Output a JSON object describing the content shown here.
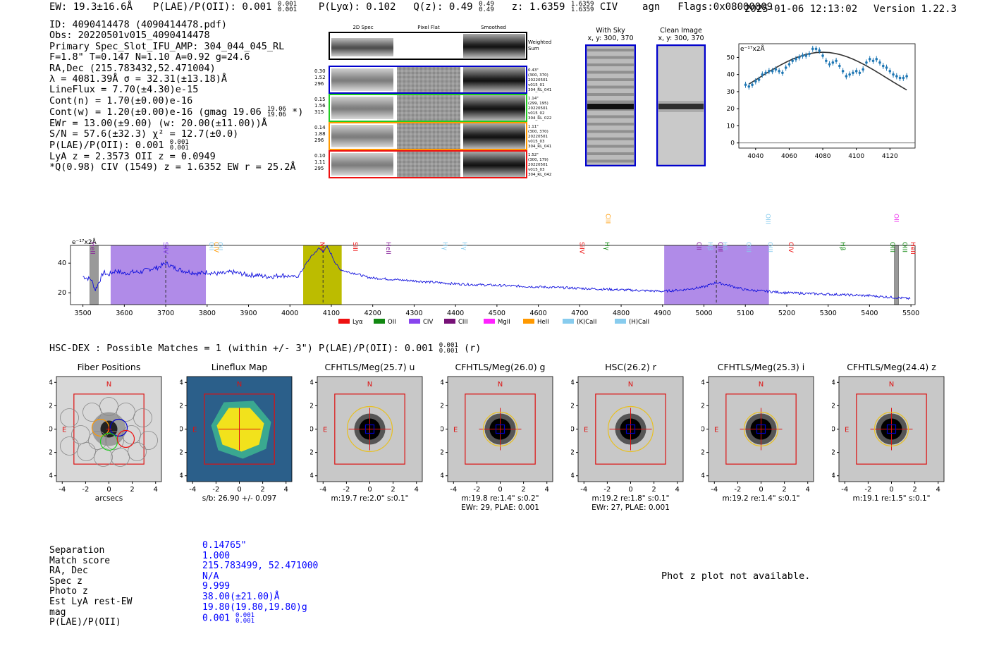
{
  "header": {
    "ew": "EW: 19.3±16.6Å",
    "plae_label": "P(LAE)/P(OII): 0.001",
    "plae_hi": "0.001",
    "plae_lo": "0.001",
    "plya": "P(Lyα): 0.102",
    "qz_label": "Q(z): 0.49",
    "qz_hi": "0.49",
    "qz_lo": "0.49",
    "z_label": "z: 1.6359",
    "z_hi": "1.6359",
    "z_lo": "1.6359",
    "line": "CIV",
    "cls": "agn",
    "flags": "Flags:0x08000009",
    "timestamp": "2025-01-06 12:13:02",
    "version": "Version 1.22.3"
  },
  "info": {
    "l1": "ID: 4090414478 (4090414478.pdf)",
    "l2": "Obs: 20220501v015_4090414478",
    "l3": "Primary Spec_Slot_IFU_AMP: 304_044_045_RL",
    "l4": "F=1.8\"  T=0.147  N=1.10  A=0.92  g=24.6",
    "l5": "RA,Dec (215.783432,52.471004)",
    "l6": "λ = 4081.39Å  σ = 32.31(±13.18)Å",
    "l7": "LineFlux = 7.70(±4.30)e-15",
    "l8": "Cont(n) = 1.70(±0.00)e-16",
    "l9a": "Cont(w) = 1.20(±0.00)e-16 (gmag 19.06",
    "l9_hi": "19.06",
    "l9_lo": "19.06",
    "l9b": "*)",
    "l10": "EWr = 13.00(±9.00) (w: 20.00(±11.00))Å",
    "l11": "S/N = 57.6(±32.3)  χ² = 12.7(±0.0)",
    "l12": "P(LAE)/P(OII): 0.001",
    "l12_hi": "0.001",
    "l12_lo": "0.001",
    "l13": "LyA z = 2.3573  OII z = 0.0949",
    "l14": "*Q(0.98) CIV (1549) z = 1.6352  EW r = 25.2Å"
  },
  "cutouts": {
    "col_2d": "2D Spec",
    "col_flat": "Pixel Flat",
    "col_smooth": "Smoothed",
    "weighted": "Weighted",
    "sum": "Sum",
    "rows": [
      {
        "color": "#0000cc",
        "n1": "0.30",
        "n2": "1.52",
        "n3": "296",
        "r1": "0.43\"",
        "r2": "(300, 370)",
        "r3": "20220501",
        "r4": "v015_01",
        "r5": "304_RL_041"
      },
      {
        "color": "#22cc22",
        "n1": "0.15",
        "n2": "1.56",
        "n3": "315",
        "r1": "1.14\"",
        "r2": "(299, 195)",
        "r3": "20220501",
        "r4": "v015_02",
        "r5": "304_RL_022"
      },
      {
        "color": "#ff9900",
        "n1": "0.14",
        "n2": "1.88",
        "n3": "296",
        "r1": "1.11\"",
        "r2": "(300, 370)",
        "r3": "20220501",
        "r4": "v015_03",
        "r5": "304_RL_041"
      },
      {
        "color": "#ee1111",
        "n1": "0.10",
        "n2": "1.11",
        "n3": "295",
        "r1": "1.52\"",
        "r2": "(300, 179)",
        "r3": "20220501",
        "r4": "v015_03",
        "r5": "304_RL_042"
      }
    ]
  },
  "sky": {
    "with_sky_title": "With Sky",
    "with_sky_xy": "x, y: 300, 370",
    "clean_title": "Clean Image",
    "clean_xy": "x, y: 300, 370"
  },
  "zoom_plot": {
    "unit": "e⁻¹⁷x2Å",
    "xticks": [
      "4040",
      "4060",
      "4080",
      "4100",
      "4120"
    ],
    "yticks": [
      "0",
      "10",
      "20",
      "30",
      "40",
      "50"
    ]
  },
  "full_spectrum": {
    "unit": "e⁻¹⁷x2Å",
    "xticks": [
      "3500",
      "3600",
      "3700",
      "3800",
      "3900",
      "4000",
      "4100",
      "4200",
      "4300",
      "4400",
      "4500",
      "4600",
      "4700",
      "4800",
      "4900",
      "5000",
      "5100",
      "5200",
      "5300",
      "5400",
      "5500"
    ],
    "yticks": [
      "20",
      "40"
    ],
    "line_labels": [
      {
        "t": "HeII",
        "c": "#882299",
        "w": 3513
      },
      {
        "t": "SiIV",
        "c": "#8844ee",
        "w": 3690
      },
      {
        "t": "OII",
        "c": "#88ccee",
        "w": 3800
      },
      {
        "t": "CIV",
        "c": "#ff9900",
        "w": 3812
      },
      {
        "t": "OII",
        "c": "#88ccee",
        "w": 3822
      },
      {
        "t": "NV",
        "c": "#ee1111",
        "w": 4068
      },
      {
        "t": "SiII",
        "c": "#ee1111",
        "w": 4148
      },
      {
        "t": "HeII",
        "c": "#882299",
        "w": 4228
      },
      {
        "t": "Hγ",
        "c": "#88ccee",
        "w": 4365
      },
      {
        "t": "Hγ",
        "c": "#88ccee",
        "w": 4412
      },
      {
        "t": "SiIV",
        "c": "#ee1111",
        "w": 4695
      },
      {
        "t": "Hγ",
        "c": "#118811",
        "w": 4756
      },
      {
        "t": "CIII",
        "c": "#ff9900",
        "w": 4758
      },
      {
        "t": "CII",
        "c": "#882299",
        "w": 4978
      },
      {
        "t": "Hβ",
        "c": "#88ccee",
        "w": 5005
      },
      {
        "t": "CIII",
        "c": "#882299",
        "w": 5030
      },
      {
        "t": "Hδ",
        "c": "#88ccee",
        "w": 5040
      },
      {
        "t": "OIII",
        "c": "#88ccee",
        "w": 5098
      },
      {
        "t": "OIII",
        "c": "#88ccee",
        "w": 5145
      },
      {
        "t": "OIII",
        "c": "#88ccee",
        "w": 5150
      },
      {
        "t": "CIV",
        "c": "#ee1111",
        "w": 5200
      },
      {
        "t": "Hβ",
        "c": "#118811",
        "w": 5325
      },
      {
        "t": "OIII",
        "c": "#118811",
        "w": 5445
      },
      {
        "t": "OII",
        "c": "#ee33ee",
        "w": 5455
      },
      {
        "t": "OIII",
        "c": "#118811",
        "w": 5475
      },
      {
        "t": "HeII",
        "c": "#ee1111",
        "w": 5495
      }
    ],
    "legend": [
      {
        "t": "Lyα",
        "c": "#ee1111"
      },
      {
        "t": "OII",
        "c": "#118811"
      },
      {
        "t": "CIV",
        "c": "#8844ee"
      },
      {
        "t": "CIII",
        "c": "#771177"
      },
      {
        "t": "MgII",
        "c": "#ff22ff"
      },
      {
        "t": "HeII",
        "c": "#ff9900"
      },
      {
        "t": "(K)CaII",
        "c": "#88ccee"
      },
      {
        "t": "(H)CaII",
        "c": "#88ccee"
      }
    ]
  },
  "chart_data": {
    "type": "line",
    "title": "",
    "xlabel": "",
    "ylabel": "e-17x2Å",
    "xlim": [
      3470,
      5510
    ],
    "ylim": [
      12,
      52
    ],
    "regions": [
      {
        "from": 3567,
        "to": 3797,
        "color": "#b08be8"
      },
      {
        "from": 4032,
        "to": 4125,
        "color": "#bcbc00"
      },
      {
        "from": 4904,
        "to": 5157,
        "color": "#b08be8"
      }
    ],
    "dashed_lines": [
      3700,
      4080,
      5030
    ],
    "series": [
      {
        "name": "spectrum",
        "x": [
          3500,
          3520,
          3530,
          3540,
          3550,
          3560,
          3580,
          3600,
          3620,
          3640,
          3660,
          3680,
          3700,
          3720,
          3740,
          3760,
          3780,
          3800,
          3820,
          3840,
          3860,
          3880,
          3900,
          3920,
          3940,
          3960,
          3980,
          4000,
          4020,
          4040,
          4050,
          4060,
          4070,
          4080,
          4090,
          4100,
          4110,
          4120,
          4140,
          4160,
          4180,
          4200,
          4250,
          4300,
          4350,
          4400,
          4450,
          4500,
          4550,
          4600,
          4650,
          4700,
          4750,
          4800,
          4850,
          4900,
          4950,
          5000,
          5030,
          5060,
          5100,
          5150,
          5200,
          5250,
          5300,
          5350,
          5400,
          5450,
          5500
        ],
        "values": [
          31,
          29,
          22,
          28,
          34,
          32,
          35,
          33,
          34,
          34,
          36,
          37,
          40,
          37,
          35,
          34,
          33,
          34,
          33,
          33,
          34,
          33,
          32,
          32,
          31,
          31,
          32,
          31,
          31,
          40,
          44,
          47,
          50,
          48,
          51,
          46,
          40,
          36,
          34,
          33,
          31,
          30,
          29,
          28,
          27,
          26,
          25.5,
          25,
          24.5,
          24,
          23.5,
          23,
          22.5,
          22,
          21.5,
          21,
          22,
          24,
          27,
          25,
          22,
          21,
          20,
          19.5,
          19,
          18.5,
          18,
          17,
          16
        ]
      }
    ],
    "zoom": {
      "xlim": [
        4030,
        4135
      ],
      "ylim": [
        -3,
        58
      ],
      "points_x": [
        4034,
        4036,
        4038,
        4040,
        4042,
        4044,
        4046,
        4048,
        4050,
        4052,
        4054,
        4056,
        4058,
        4060,
        4062,
        4064,
        4066,
        4068,
        4070,
        4072,
        4074,
        4076,
        4078,
        4080,
        4082,
        4084,
        4086,
        4088,
        4090,
        4092,
        4094,
        4096,
        4098,
        4100,
        4102,
        4104,
        4106,
        4108,
        4110,
        4112,
        4114,
        4116,
        4118,
        4120,
        4122,
        4124,
        4126,
        4128,
        4130
      ],
      "points_y": [
        34,
        33,
        34,
        36,
        37,
        40,
        41,
        42,
        42,
        43,
        42,
        41,
        44,
        46,
        48,
        49,
        50,
        51,
        51,
        52,
        55,
        55,
        54,
        51,
        48,
        46,
        47,
        48,
        45,
        42,
        39,
        40,
        41,
        42,
        41,
        43,
        47,
        49,
        48,
        49,
        47,
        45,
        44,
        42,
        40,
        39,
        38,
        38,
        39
      ],
      "fit_y_peak": 53,
      "fit_x_peak": 4080
    }
  },
  "hsc": {
    "title": "HSC-DEX : Possible Matches = 1 (within +/- 3\")  P(LAE)/P(OII): 0.001",
    "hi": "0.001",
    "lo": "0.001",
    "tail": "(r)",
    "panels": [
      {
        "title": "Fiber Positions",
        "sub1": "arcsecs",
        "sub2": ""
      },
      {
        "title": "Lineflux Map",
        "sub1": "s/b: 26.90 +/- 0.097",
        "sub2": ""
      },
      {
        "title": "CFHTLS/Meg(25.7) u",
        "sub1": "m:19.7  re:2.0\"  s:0.1\"",
        "sub2": ""
      },
      {
        "title": "CFHTLS/Meg(26.0) g",
        "sub1": "m:19.8  re:1.4\"  s:0.2\"",
        "sub2": "EWr: 29, PLAE: 0.001"
      },
      {
        "title": "HSC(26.2) r",
        "sub1": "m:19.2  re:1.8\"  s:0.1\"",
        "sub2": "EWr: 27, PLAE: 0.001"
      },
      {
        "title": "CFHTLS/Meg(25.3) i",
        "sub1": "m:19.2  re:1.4\"  s:0.1\"",
        "sub2": ""
      },
      {
        "title": "CFHTLS/Meg(24.4) z",
        "sub1": "m:19.1  re:1.5\"  s:0.1\"",
        "sub2": ""
      }
    ],
    "ticks": [
      "-4",
      "-2",
      "0",
      "2",
      "4"
    ],
    "north": "N",
    "east": "E"
  },
  "match": {
    "labels": [
      "Separation",
      "Match score",
      "RA, Dec",
      "Spec z",
      "Photo z",
      "Est LyA rest-EW",
      "mag",
      "P(LAE)/P(OII)"
    ],
    "values": [
      "0.14765\"",
      "1.000",
      "215.783499, 52.471000",
      "N/A",
      "9.999",
      "38.00(±21.00)Å",
      "19.80(19.80,19.80)g",
      "0.001"
    ],
    "plae_hi": "0.001",
    "plae_lo": "0.001",
    "photz_note": "Phot z plot not available."
  }
}
